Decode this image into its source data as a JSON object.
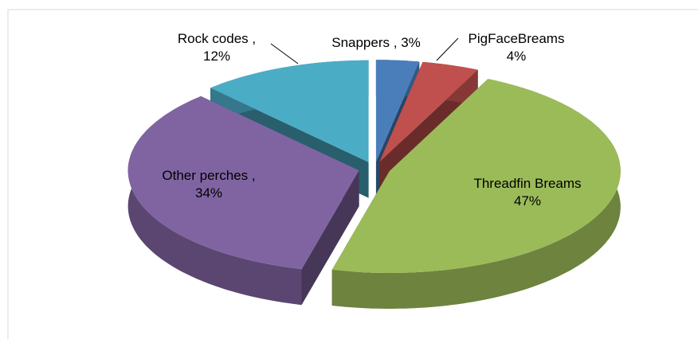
{
  "chart_data": {
    "type": "pie3d",
    "categories": [
      "Snappers",
      "PigFaceBreams",
      "Threadfin Breams",
      "Other perches",
      "Rock codes"
    ],
    "values": [
      3,
      4,
      47,
      34,
      12
    ],
    "value_labels": [
      ", 3%",
      "4%",
      "47%",
      ", 34%",
      ", 12%"
    ],
    "colors": [
      "#4a7ebb",
      "#c0504d",
      "#9bbb59",
      "#8064a2",
      "#4bacc6"
    ]
  }
}
